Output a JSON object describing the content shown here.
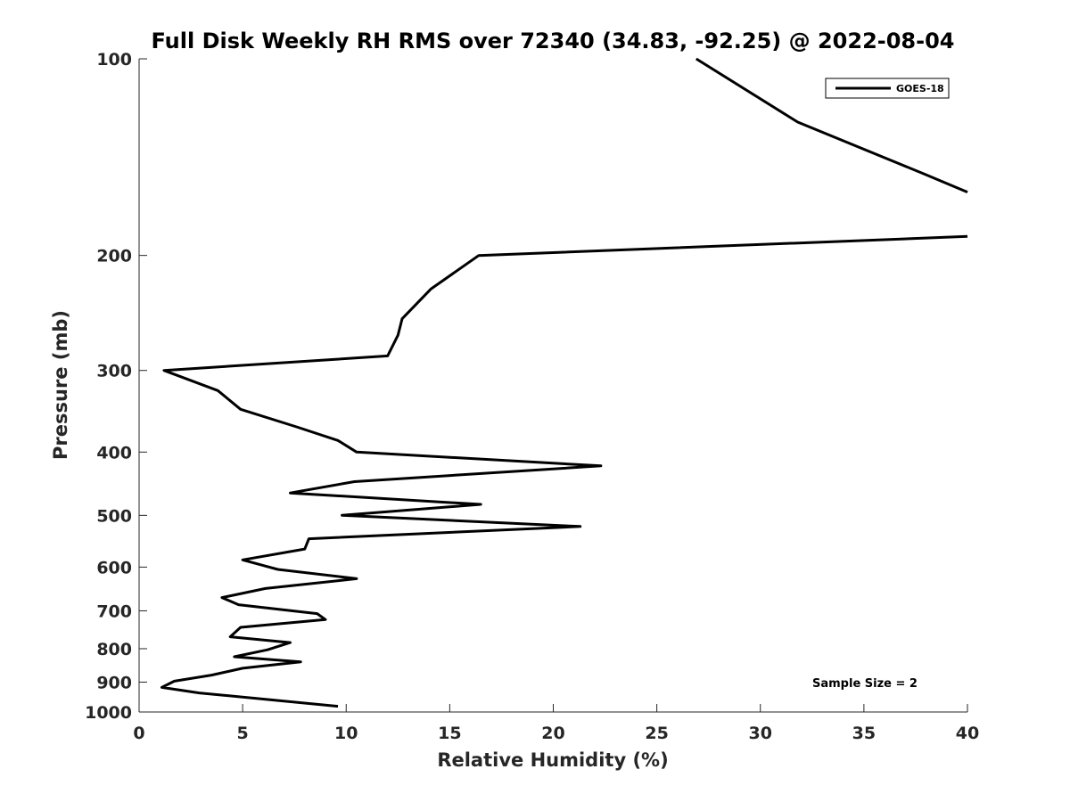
{
  "chart_data": {
    "type": "line",
    "title": "Full Disk Weekly RH RMS over 72340 (34.83, -92.25) @ 2022-08-04",
    "xlabel": "Relative Humidity (%)",
    "ylabel": "Pressure (mb)",
    "xlim": [
      0,
      40
    ],
    "ylim": [
      100,
      1000
    ],
    "yscale": "log",
    "y_reversed": true,
    "grid": false,
    "legend_position": "top-right",
    "x_ticks": [
      "0",
      "5",
      "10",
      "15",
      "20",
      "25",
      "30",
      "35",
      "40"
    ],
    "y_ticks": [
      "100",
      "200",
      "300",
      "400",
      "500",
      "600",
      "700",
      "800",
      "900",
      "1000"
    ],
    "annotation": "Sample Size = 2",
    "series": [
      {
        "name": "GOES-18",
        "color": "#000000",
        "points": [
          {
            "x": 26.9,
            "y": 100
          },
          {
            "x": 31.8,
            "y": 125
          },
          {
            "x": 37.9,
            "y": 150
          },
          {
            "x": 40.0,
            "y": 160
          },
          {
            "x": null,
            "y": null
          },
          {
            "x": 40.0,
            "y": 187
          },
          {
            "x": 16.4,
            "y": 200
          },
          {
            "x": 14.1,
            "y": 225
          },
          {
            "x": 12.7,
            "y": 250
          },
          {
            "x": 12.5,
            "y": 265
          },
          {
            "x": 12.0,
            "y": 285
          },
          {
            "x": 1.2,
            "y": 300
          },
          {
            "x": 3.8,
            "y": 322
          },
          {
            "x": 4.9,
            "y": 344
          },
          {
            "x": 7.6,
            "y": 366
          },
          {
            "x": 9.6,
            "y": 384
          },
          {
            "x": 10.5,
            "y": 400
          },
          {
            "x": 22.3,
            "y": 420
          },
          {
            "x": 10.4,
            "y": 444
          },
          {
            "x": 7.3,
            "y": 462
          },
          {
            "x": 16.5,
            "y": 481
          },
          {
            "x": 9.8,
            "y": 500
          },
          {
            "x": 21.3,
            "y": 520
          },
          {
            "x": 8.2,
            "y": 543
          },
          {
            "x": 8.0,
            "y": 563
          },
          {
            "x": 5.0,
            "y": 585
          },
          {
            "x": 6.7,
            "y": 605
          },
          {
            "x": 10.5,
            "y": 625
          },
          {
            "x": 6.1,
            "y": 647
          },
          {
            "x": 4.0,
            "y": 668
          },
          {
            "x": 4.8,
            "y": 685
          },
          {
            "x": 8.6,
            "y": 707
          },
          {
            "x": 9.0,
            "y": 722
          },
          {
            "x": 4.9,
            "y": 742
          },
          {
            "x": 4.4,
            "y": 767
          },
          {
            "x": 7.3,
            "y": 783
          },
          {
            "x": 6.2,
            "y": 803
          },
          {
            "x": 4.6,
            "y": 823
          },
          {
            "x": 7.8,
            "y": 838
          },
          {
            "x": 5.0,
            "y": 857
          },
          {
            "x": 3.5,
            "y": 878
          },
          {
            "x": 1.7,
            "y": 897
          },
          {
            "x": 1.1,
            "y": 917
          },
          {
            "x": 2.9,
            "y": 935
          },
          {
            "x": 9.6,
            "y": 980
          }
        ]
      }
    ]
  }
}
